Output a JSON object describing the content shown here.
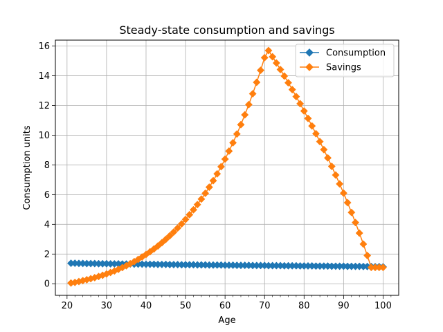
{
  "chart_data": {
    "type": "line",
    "title": "Steady-state consumption and savings",
    "xlabel": "Age",
    "ylabel": "Consumption units",
    "xlim": [
      17.05,
      103.95
    ],
    "ylim": [
      -0.78,
      16.4
    ],
    "xticks": [
      20,
      30,
      40,
      50,
      60,
      70,
      80,
      90,
      100
    ],
    "yticks": [
      0,
      2,
      4,
      6,
      8,
      10,
      12,
      14,
      16
    ],
    "grid": true,
    "legend_position": "top-right",
    "series": [
      {
        "name": "Consumption",
        "color": "#1f77b4",
        "marker": "diamond",
        "x": [
          21,
          22,
          23,
          24,
          25,
          26,
          27,
          28,
          29,
          30,
          31,
          32,
          33,
          34,
          35,
          36,
          37,
          38,
          39,
          40,
          41,
          42,
          43,
          44,
          45,
          46,
          47,
          48,
          49,
          50,
          51,
          52,
          53,
          54,
          55,
          56,
          57,
          58,
          59,
          60,
          61,
          62,
          63,
          64,
          65,
          66,
          67,
          68,
          69,
          70,
          71,
          72,
          73,
          74,
          75,
          76,
          77,
          78,
          79,
          80,
          81,
          82,
          83,
          84,
          85,
          86,
          87,
          88,
          89,
          90,
          91,
          92,
          93,
          94,
          95,
          96,
          97,
          98,
          99,
          100
        ],
        "y": [
          1.38,
          1.38,
          1.37,
          1.37,
          1.36,
          1.36,
          1.36,
          1.35,
          1.35,
          1.35,
          1.34,
          1.34,
          1.34,
          1.33,
          1.33,
          1.33,
          1.32,
          1.32,
          1.32,
          1.31,
          1.31,
          1.31,
          1.3,
          1.3,
          1.3,
          1.29,
          1.29,
          1.29,
          1.28,
          1.28,
          1.28,
          1.28,
          1.27,
          1.27,
          1.27,
          1.26,
          1.26,
          1.26,
          1.26,
          1.25,
          1.25,
          1.25,
          1.24,
          1.24,
          1.24,
          1.24,
          1.23,
          1.23,
          1.23,
          1.23,
          1.22,
          1.22,
          1.22,
          1.22,
          1.21,
          1.21,
          1.21,
          1.21,
          1.2,
          1.2,
          1.2,
          1.2,
          1.19,
          1.19,
          1.19,
          1.19,
          1.18,
          1.18,
          1.18,
          1.18,
          1.17,
          1.17,
          1.17,
          1.17,
          1.16,
          1.16,
          1.16,
          1.15,
          1.15,
          1.14
        ]
      },
      {
        "name": "Savings",
        "color": "#ff7f0e",
        "marker": "diamond",
        "x": [
          21,
          22,
          23,
          24,
          25,
          26,
          27,
          28,
          29,
          30,
          31,
          32,
          33,
          34,
          35,
          36,
          37,
          38,
          39,
          40,
          41,
          42,
          43,
          44,
          45,
          46,
          47,
          48,
          49,
          50,
          51,
          52,
          53,
          54,
          55,
          56,
          57,
          58,
          59,
          60,
          61,
          62,
          63,
          64,
          65,
          66,
          67,
          68,
          69,
          70,
          71,
          72,
          73,
          74,
          75,
          76,
          77,
          78,
          79,
          80,
          81,
          82,
          83,
          84,
          85,
          86,
          87,
          88,
          89,
          90,
          91,
          92,
          93,
          94,
          95,
          96,
          97,
          98,
          99,
          100
        ],
        "y": [
          0.05,
          0.09,
          0.15,
          0.21,
          0.27,
          0.34,
          0.41,
          0.49,
          0.57,
          0.66,
          0.76,
          0.86,
          0.97,
          1.09,
          1.21,
          1.35,
          1.49,
          1.64,
          1.8,
          1.97,
          2.15,
          2.34,
          2.54,
          2.76,
          2.99,
          3.23,
          3.48,
          3.75,
          4.03,
          4.33,
          4.65,
          4.98,
          5.33,
          5.7,
          6.09,
          6.5,
          6.94,
          7.4,
          7.88,
          8.39,
          8.93,
          9.49,
          10.08,
          10.71,
          11.37,
          12.06,
          12.79,
          13.56,
          14.37,
          15.22,
          15.7,
          15.28,
          14.86,
          14.42,
          13.98,
          13.53,
          13.07,
          12.6,
          12.12,
          11.63,
          11.13,
          10.62,
          10.1,
          9.57,
          9.03,
          8.47,
          7.9,
          7.32,
          6.72,
          6.1,
          5.46,
          4.8,
          4.12,
          3.41,
          2.67,
          1.9,
          1.1,
          1.1,
          1.1,
          1.1
        ]
      }
    ]
  }
}
